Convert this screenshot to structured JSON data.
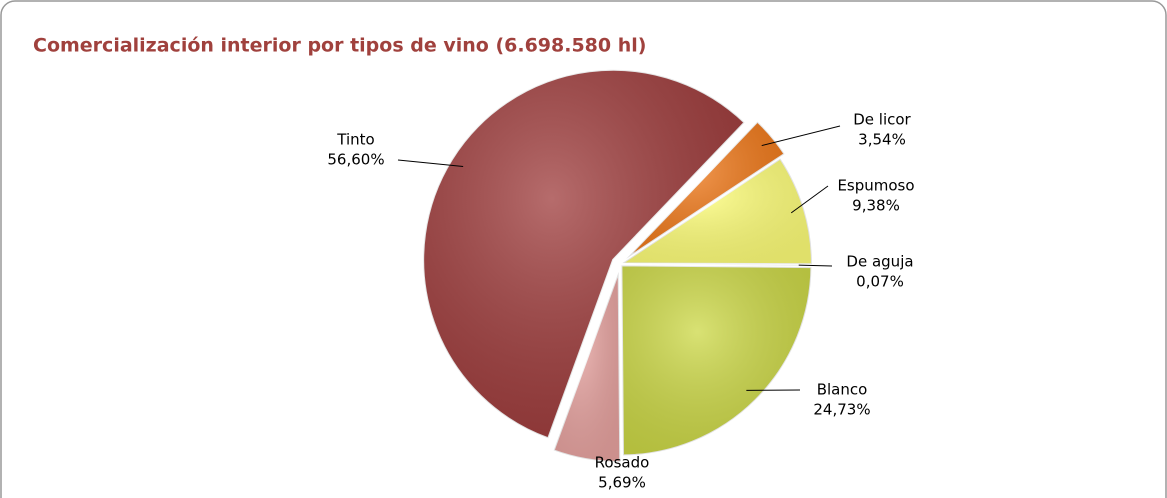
{
  "chart_data": {
    "type": "pie",
    "title": "Comercialización interior por tipos de vino (6.698.580 hl)",
    "categories": [
      "Tinto",
      "De licor",
      "Espumoso",
      "De aguja",
      "Blanco",
      "Rosado"
    ],
    "values": [
      56.6,
      3.54,
      9.38,
      0.07,
      24.73,
      5.69
    ],
    "value_labels": [
      "56,60%",
      "3,54%",
      "9,38%",
      "0,07%",
      "24,73%",
      "5,69%"
    ],
    "colors": [
      "#9e3b3b",
      "#f07818",
      "#ffff78",
      "#e8e060",
      "#ccd845",
      "#e8a3a0"
    ]
  }
}
